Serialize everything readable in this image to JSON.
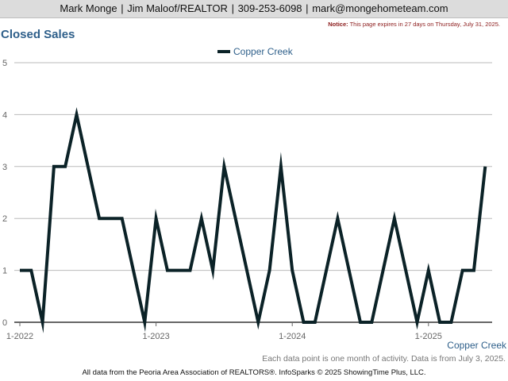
{
  "header": {
    "name": "Mark Monge",
    "agency": "Jim Maloof/REALTOR",
    "phone": "309-253-6098",
    "email": "mark@mongehometeam.com",
    "separator": "|"
  },
  "notice": {
    "label": "Notice:",
    "text": "This page expires in 27 days on Thursday, July 31, 2025."
  },
  "chart_data": {
    "type": "line",
    "title": "Closed Sales",
    "xlabel": "",
    "ylabel": "",
    "legend_position": "top-center",
    "grid": true,
    "ylim": [
      0,
      5
    ],
    "y_ticks": [
      "0",
      "1",
      "2",
      "3",
      "4",
      "5"
    ],
    "x_ticks": [
      "1-2022",
      "1-2023",
      "1-2024",
      "1-2025"
    ],
    "x": [
      "2022-01",
      "2022-02",
      "2022-03",
      "2022-04",
      "2022-05",
      "2022-06",
      "2022-07",
      "2022-08",
      "2022-09",
      "2022-10",
      "2022-11",
      "2022-12",
      "2023-01",
      "2023-02",
      "2023-03",
      "2023-04",
      "2023-05",
      "2023-06",
      "2023-07",
      "2023-08",
      "2023-09",
      "2023-10",
      "2023-11",
      "2023-12",
      "2024-01",
      "2024-02",
      "2024-03",
      "2024-04",
      "2024-05",
      "2024-06",
      "2024-07",
      "2024-08",
      "2024-09",
      "2024-10",
      "2024-11",
      "2024-12",
      "2025-01",
      "2025-02",
      "2025-03",
      "2025-04",
      "2025-05",
      "2025-06"
    ],
    "series": [
      {
        "name": "Copper Creek",
        "color": "#0b2227",
        "values": [
          1,
          1,
          0,
          3,
          3,
          4,
          3,
          2,
          2,
          2,
          1,
          0,
          2,
          1,
          1,
          1,
          2,
          1,
          3,
          2,
          1,
          0,
          1,
          3,
          1,
          0,
          0,
          1,
          2,
          1,
          0,
          0,
          1,
          2,
          1,
          0,
          1,
          0,
          0,
          1,
          1,
          3
        ]
      }
    ]
  },
  "bottom_series_label": "Copper Creek",
  "footnote": "Each data point is one month of activity. Data is from July 3, 2025.",
  "footer": "All data from the Peoria Area Association of REALTORS®. InfoSparks © 2025 ShowingTime Plus, LLC."
}
